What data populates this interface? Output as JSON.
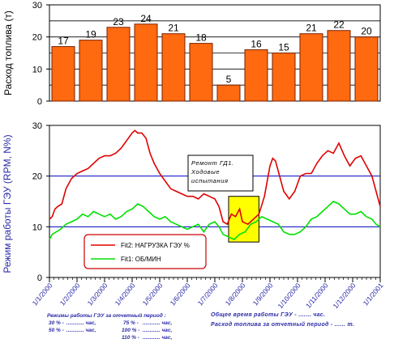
{
  "chart_data": [
    {
      "type": "bar",
      "ylabel": "Расход топлива (т)",
      "ylim": [
        0,
        30
      ],
      "yticks": [
        0,
        10,
        20,
        30
      ],
      "grid": true,
      "categories": [
        "1/1/2000",
        "1/2/2000",
        "1/3/2000",
        "1/4/2000",
        "1/5/2000",
        "1/6/2000",
        "1/7/2000",
        "1/8/2000",
        "1/9/2000",
        "1/10/2000",
        "1/11/2000",
        "1/12/2000"
      ],
      "values": [
        17,
        19,
        23,
        24,
        21,
        18,
        5,
        16,
        15,
        21,
        22,
        20
      ],
      "data_labels": [
        "17",
        "19",
        "23",
        "24",
        "21",
        "18",
        "5",
        "16",
        "15",
        "21",
        "22",
        "20"
      ],
      "colors": {
        "bar": "#ff6a10",
        "edge": "#7a2000"
      }
    },
    {
      "type": "line",
      "ylabel": "Режим работы ГЭУ (RPM, N%)",
      "ylim": [
        0,
        30
      ],
      "yticks": [
        0,
        10,
        20,
        30
      ],
      "grid": true,
      "x_ticks": [
        "1/1/2000",
        "1/2/2000",
        "1/3/2000",
        "1/4/2000",
        "1/5/2000",
        "1/6/2000",
        "1/7/2000",
        "1/8/2000",
        "1/9/2000",
        "1/10/2000",
        "1/11/2000",
        "1/12/2000",
        "1/1/2001"
      ],
      "series": [
        {
          "name": "Fit2: НАГРУЗКА ГЭУ %",
          "color": "#e00000",
          "x": [
            0,
            0.1,
            0.2,
            0.3,
            0.45,
            0.6,
            0.8,
            1.0,
            1.2,
            1.4,
            1.6,
            1.8,
            2.0,
            2.2,
            2.4,
            2.6,
            2.8,
            3.0,
            3.1,
            3.2,
            3.35,
            3.5,
            3.65,
            3.8,
            4.0,
            4.2,
            4.4,
            4.6,
            4.8,
            5.0,
            5.2,
            5.4,
            5.6,
            5.8,
            6.0,
            6.15,
            6.3,
            6.45,
            6.6,
            6.75,
            6.9,
            7.0,
            7.2,
            7.4,
            7.6,
            7.8,
            7.9,
            8.0,
            8.1,
            8.2,
            8.35,
            8.5,
            8.7,
            8.9,
            9.1,
            9.3,
            9.5,
            9.7,
            9.9,
            10.1,
            10.3,
            10.5,
            10.7,
            10.9,
            11.1,
            11.3,
            11.5,
            11.7,
            11.85,
            12.0
          ],
          "y": [
            11.5,
            12.0,
            13.5,
            14.0,
            14.5,
            17.5,
            19.5,
            20.5,
            21.0,
            21.5,
            22.5,
            23.5,
            24.0,
            24.0,
            24.5,
            25.5,
            27.0,
            28.5,
            29.0,
            28.5,
            28.5,
            27.5,
            24.5,
            22.5,
            20.5,
            19.0,
            17.5,
            17.0,
            16.5,
            16.0,
            16.0,
            15.5,
            16.5,
            16.0,
            15.5,
            14.0,
            11.0,
            10.5,
            12.5,
            12.0,
            13.5,
            11.0,
            10.5,
            11.5,
            12.5,
            16.0,
            19.0,
            22.0,
            23.5,
            23.0,
            20.0,
            17.0,
            15.5,
            17.0,
            20.0,
            20.5,
            20.5,
            22.5,
            24.0,
            25.0,
            24.5,
            26.5,
            24.0,
            22.0,
            23.5,
            24.0,
            22.0,
            20.0,
            17.0,
            14.0
          ]
        },
        {
          "name": "Fit1: ОБ/МИН",
          "color": "#00e000",
          "x": [
            0,
            0.1,
            0.25,
            0.4,
            0.6,
            0.8,
            1.0,
            1.2,
            1.4,
            1.6,
            1.8,
            2.0,
            2.2,
            2.4,
            2.6,
            2.8,
            3.0,
            3.2,
            3.4,
            3.6,
            3.8,
            4.0,
            4.2,
            4.4,
            4.6,
            4.8,
            5.0,
            5.2,
            5.4,
            5.6,
            5.8,
            6.0,
            6.15,
            6.3,
            6.5,
            6.7,
            6.9,
            7.1,
            7.3,
            7.5,
            7.7,
            7.9,
            8.1,
            8.3,
            8.5,
            8.7,
            8.9,
            9.1,
            9.3,
            9.5,
            9.7,
            9.9,
            10.1,
            10.3,
            10.5,
            10.7,
            10.9,
            11.1,
            11.3,
            11.5,
            11.7,
            11.85,
            12.0
          ],
          "y": [
            7.5,
            8.5,
            9.0,
            9.5,
            10.5,
            11.0,
            11.5,
            12.5,
            12.0,
            13.0,
            12.5,
            12.0,
            12.5,
            11.5,
            12.0,
            13.0,
            13.5,
            14.5,
            14.0,
            13.0,
            12.0,
            11.5,
            12.0,
            11.0,
            10.5,
            10.0,
            9.5,
            10.0,
            10.5,
            9.0,
            10.5,
            11.0,
            10.0,
            8.5,
            8.0,
            7.5,
            8.5,
            9.0,
            10.5,
            11.0,
            12.0,
            11.5,
            11.0,
            10.5,
            9.0,
            8.5,
            8.5,
            9.0,
            10.0,
            11.5,
            12.0,
            13.0,
            14.0,
            15.0,
            14.5,
            13.5,
            12.5,
            12.5,
            13.0,
            12.0,
            11.5,
            10.5,
            10.0
          ]
        }
      ],
      "annotation": {
        "text_lines": [
          "Ремонт ГД1.",
          "Ходовые",
          "испытания"
        ],
        "highlight_x": [
          6.5,
          7.6
        ],
        "highlight_y": [
          7,
          16
        ],
        "highlight_color": "#ffff00"
      }
    }
  ],
  "footer": {
    "modes_title": "Режимы работы ГЭУ за отчетный период :",
    "modes": [
      {
        "pct": "30 % -",
        "val": " ............ час,"
      },
      {
        "pct": "50 % -",
        "val": " ............ час,"
      },
      {
        "pct": "75 % -",
        "val": " ............ час,"
      },
      {
        "pct": "100 % -",
        "val": " ............ час,"
      },
      {
        "pct": "110 % -",
        "val": " ............ час,"
      }
    ],
    "total_time": "Общее время работы ГЭУ - ....... час.",
    "total_fuel": "Расход топлива за отчетный период - ...... т."
  }
}
